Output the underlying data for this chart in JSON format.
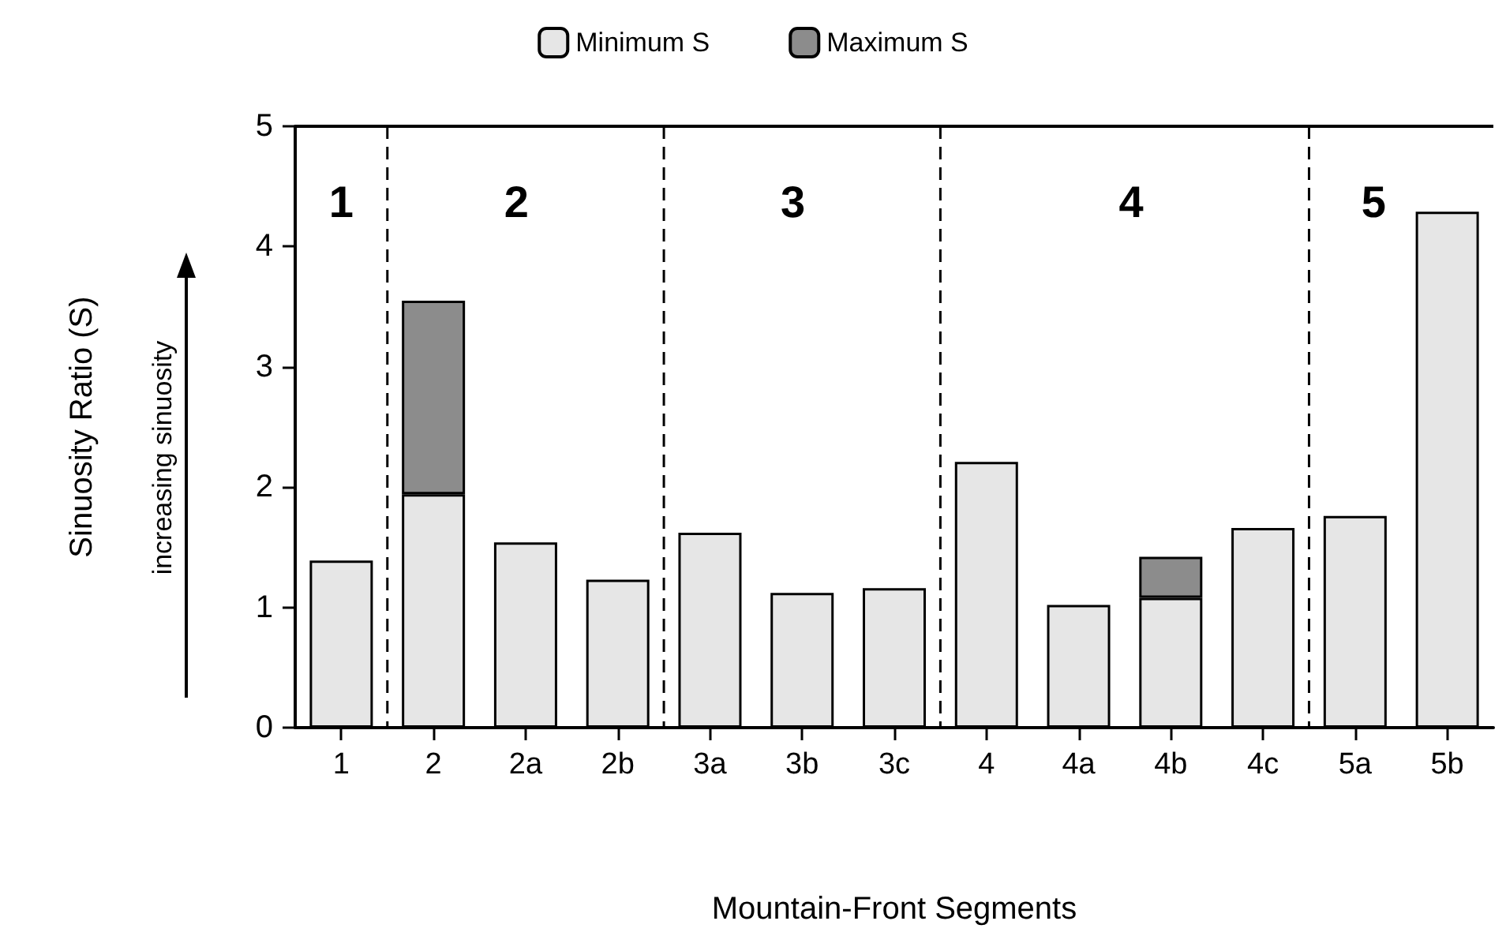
{
  "chart_data": {
    "type": "bar",
    "stacked": true,
    "xlabel": "Mountain-Front Segments",
    "ylabel": "Sinuosity Ratio (S)",
    "categories": [
      "1",
      "2",
      "2a",
      "2b",
      "3a",
      "3b",
      "3c",
      "4",
      "4a",
      "4b",
      "4c",
      "5a",
      "5b"
    ],
    "ylim": [
      0,
      5
    ],
    "yticks": [
      0,
      1,
      2,
      3,
      4,
      5
    ],
    "series": [
      {
        "name": "Minimum S",
        "color": "#e6e6e6",
        "values": [
          1.39,
          1.94,
          1.54,
          1.23,
          1.62,
          1.12,
          1.16,
          2.21,
          1.02,
          1.08,
          1.66,
          1.76,
          4.29
        ]
      },
      {
        "name": "Maximum S",
        "color": "#8c8c8c",
        "values": [
          null,
          1.61,
          null,
          null,
          null,
          null,
          null,
          null,
          null,
          0.34,
          null,
          null,
          null
        ]
      }
    ],
    "annotations": [
      "1",
      "2",
      "3",
      "4",
      "5",
      "increasing sinuosity"
    ],
    "legend": "top",
    "grid": false
  }
}
